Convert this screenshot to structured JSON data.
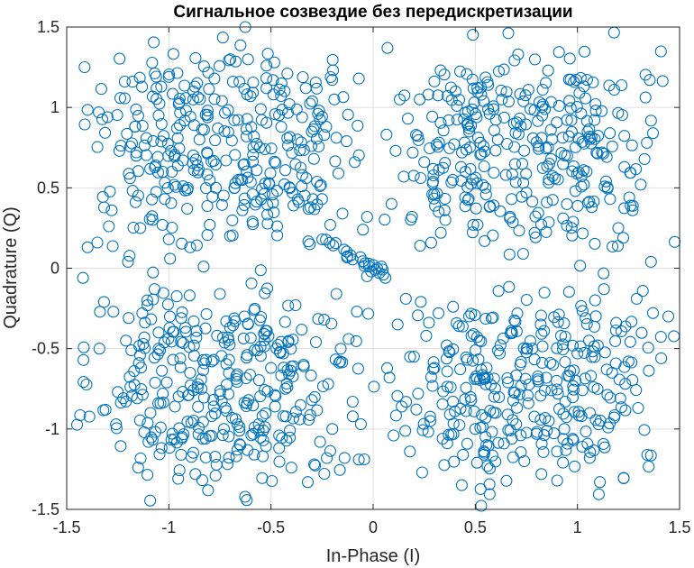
{
  "chart_data": {
    "type": "scatter",
    "title": "Сигнальное созвездие без передискретизации",
    "xlabel": "In-Phase (I)",
    "ylabel": "Quadrature (Q)",
    "xlim": [
      -1.5,
      1.5
    ],
    "ylim": [
      -1.5,
      1.5
    ],
    "xticks": [
      -1.5,
      -1,
      -0.5,
      0,
      0.5,
      1,
      1.5
    ],
    "yticks": [
      -1.5,
      -1,
      -0.5,
      0,
      0.5,
      1,
      1.5
    ],
    "xtick_labels": [
      "-1.5",
      "-1",
      "-0.5",
      "0",
      "0.5",
      "1",
      "1.5"
    ],
    "ytick_labels": [
      "-1.5",
      "-1",
      "-0.5",
      "0",
      "0.5",
      "1",
      "1.5"
    ],
    "grid": true,
    "marker": "circle-open",
    "color": "#0072BD",
    "clusters": [
      [
        -1,
        1
      ],
      [
        -0.5,
        1
      ],
      [
        0.5,
        1
      ],
      [
        1,
        1
      ],
      [
        -1,
        0.5
      ],
      [
        -0.5,
        0.5
      ],
      [
        0.5,
        0.5
      ],
      [
        1,
        0.5
      ],
      [
        -1,
        -0.5
      ],
      [
        -0.5,
        -0.5
      ],
      [
        0.5,
        -0.5
      ],
      [
        1,
        -0.5
      ],
      [
        -1,
        -1
      ],
      [
        -0.5,
        -1
      ],
      [
        0.5,
        -1
      ],
      [
        1,
        -1
      ]
    ],
    "points": [
      [
        -1.42,
        -0.06
      ],
      [
        -1.35,
        0.16
      ],
      [
        -1.34,
        -0.5
      ],
      [
        -1.31,
        -0.88
      ],
      [
        -1.3,
        0.94
      ],
      [
        -1.28,
        0.36
      ],
      [
        -1.25,
        -0.77
      ],
      [
        -1.21,
        -0.45
      ],
      [
        -1.2,
        0.04
      ],
      [
        -1.19,
        0.56
      ],
      [
        -1.17,
        -0.64
      ],
      [
        -1.16,
        0.7
      ],
      [
        -1.15,
        -1.24
      ],
      [
        -1.14,
        0.25
      ],
      [
        -1.13,
        -0.28
      ],
      [
        -1.12,
        -0.43
      ],
      [
        -1.11,
        0.81
      ],
      [
        -1.1,
        -1.08
      ],
      [
        -1.09,
        -0.9
      ],
      [
        -1.08,
        0.3
      ],
      [
        -1.07,
        -0.13
      ],
      [
        -1.06,
        1.12
      ],
      [
        -1.05,
        -0.5
      ],
      [
        -1.05,
        0.95
      ],
      [
        -1.04,
        -0.99
      ],
      [
        -1.03,
        0.6
      ],
      [
        -1.02,
        0.43
      ],
      [
        -1.01,
        -0.71
      ],
      [
        -1.0,
        1.19
      ],
      [
        -1.0,
        0.18
      ],
      [
        -0.99,
        0.73
      ],
      [
        -0.98,
        -0.57
      ],
      [
        -0.97,
        -0.86
      ],
      [
        -0.96,
        0.87
      ],
      [
        -0.95,
        1.03
      ],
      [
        -0.94,
        -1.16
      ],
      [
        -0.93,
        0.51
      ],
      [
        -0.92,
        -0.37
      ],
      [
        -0.91,
        0.37
      ],
      [
        -0.9,
        -0.49
      ],
      [
        -0.89,
        -0.96
      ],
      [
        -0.88,
        1.1
      ],
      [
        -0.87,
        -1.28
      ],
      [
        -0.86,
        0.64
      ],
      [
        -0.85,
        0.8
      ],
      [
        -0.84,
        -0.75
      ],
      [
        -0.83,
        0.01
      ],
      [
        -0.82,
        -1.06
      ],
      [
        -0.81,
        0.98
      ],
      [
        -0.8,
        0.27
      ],
      [
        -0.79,
        -0.58
      ],
      [
        -0.78,
        -0.86
      ],
      [
        -0.77,
        0.5
      ],
      [
        -0.76,
        0.87
      ],
      [
        -0.75,
        -0.16
      ],
      [
        -0.74,
        1.04
      ],
      [
        -0.73,
        -1.0
      ],
      [
        -0.72,
        0.67
      ],
      [
        -0.71,
        -0.43
      ],
      [
        -0.7,
        0.2
      ],
      [
        -0.69,
        -0.93
      ],
      [
        -0.68,
        0.92
      ],
      [
        -0.67,
        -0.67
      ],
      [
        -0.66,
        0.55
      ],
      [
        -0.65,
        -1.1
      ],
      [
        -0.64,
        0.36
      ],
      [
        -0.63,
        -0.3
      ],
      [
        -0.62,
        0.82
      ],
      [
        -0.61,
        -0.82
      ],
      [
        -0.6,
        1.07
      ],
      [
        -0.59,
        0.46
      ],
      [
        -0.58,
        -0.51
      ],
      [
        -0.57,
        0.61
      ],
      [
        -0.56,
        -0.97
      ],
      [
        -0.55,
        0.99
      ],
      [
        -0.54,
        -1.17
      ],
      [
        -0.53,
        0.74
      ],
      [
        -0.52,
        -0.39
      ],
      [
        -0.51,
        0.53
      ],
      [
        -0.5,
        -0.62
      ],
      [
        -0.49,
        1.17
      ],
      [
        -0.48,
        -0.86
      ],
      [
        -0.47,
        0.26
      ],
      [
        -0.46,
        -1.04
      ],
      [
        -0.45,
        0.88
      ],
      [
        -0.44,
        -0.53
      ],
      [
        -0.43,
        0.61
      ],
      [
        -0.42,
        -0.74
      ],
      [
        -0.41,
        1.02
      ],
      [
        -0.4,
        -1.24
      ],
      [
        -0.39,
        0.39
      ],
      [
        -0.38,
        -0.23
      ],
      [
        -0.37,
        0.8
      ],
      [
        -0.36,
        -0.94
      ],
      [
        -0.35,
        0.51
      ],
      [
        -0.34,
        -0.6
      ],
      [
        -0.33,
        1.12
      ],
      [
        -0.32,
        -1.33
      ],
      [
        -0.31,
        0.15
      ],
      [
        -0.3,
        -0.82
      ],
      [
        -0.29,
        0.68
      ],
      [
        -0.28,
        -0.46
      ],
      [
        -0.27,
        0.96
      ],
      [
        -0.26,
        -1.08
      ],
      [
        -0.25,
        0.43
      ],
      [
        -0.24,
        -0.32
      ],
      [
        -0.23,
        0.88
      ],
      [
        -0.22,
        -0.72
      ],
      [
        -0.21,
        0.27
      ],
      [
        -0.2,
        -1.0
      ],
      [
        -0.19,
        1.05
      ],
      [
        -0.18,
        -0.16
      ],
      [
        -0.17,
        0.59
      ],
      [
        -0.16,
        -0.58
      ],
      [
        -0.15,
        0.34
      ],
      [
        -0.14,
        -1.18
      ],
      [
        -0.13,
        0.79
      ],
      [
        -0.12,
        -0.44
      ],
      [
        -0.11,
        0.08
      ],
      [
        -0.1,
        -0.83
      ],
      [
        -0.09,
        0.66
      ],
      [
        -0.08,
        -0.27
      ],
      [
        -0.07,
        1.18
      ],
      [
        -0.06,
        -0.97
      ],
      [
        -0.05,
        0.24
      ],
      [
        -0.04,
        0.03
      ],
      [
        -0.03,
        -0.05
      ],
      [
        -0.02,
        0.01
      ],
      [
        -0.01,
        -0.02
      ],
      [
        0.0,
        0.02
      ],
      [
        0.01,
        -0.01
      ],
      [
        0.02,
        0.0
      ],
      [
        0.03,
        -0.03
      ],
      [
        0.04,
        0.01
      ],
      [
        0.05,
        -0.04
      ],
      [
        0.06,
        -0.06
      ],
      [
        0.07,
        1.37
      ],
      [
        0.08,
        -0.68
      ],
      [
        0.09,
        0.4
      ],
      [
        0.1,
        -1.04
      ],
      [
        0.11,
        0.73
      ],
      [
        0.12,
        -0.35
      ],
      [
        0.13,
        1.05
      ],
      [
        0.14,
        -0.86
      ],
      [
        0.15,
        0.57
      ],
      [
        0.16,
        -0.19
      ],
      [
        0.17,
        0.93
      ],
      [
        0.18,
        -1.14
      ],
      [
        0.19,
        0.32
      ],
      [
        0.2,
        -0.55
      ],
      [
        0.21,
        0.83
      ],
      [
        0.22,
        -0.78
      ],
      [
        0.23,
        0.14
      ],
      [
        0.24,
        -1.27
      ],
      [
        0.25,
        0.66
      ],
      [
        0.26,
        -0.42
      ],
      [
        0.27,
        1.08
      ],
      [
        0.28,
        -0.95
      ],
      [
        0.29,
        0.46
      ],
      [
        0.3,
        -0.62
      ],
      [
        0.31,
        0.77
      ],
      [
        0.32,
        -0.28
      ],
      [
        0.33,
        1.23
      ],
      [
        0.34,
        -1.06
      ],
      [
        0.35,
        0.36
      ],
      [
        0.36,
        -0.48
      ],
      [
        0.37,
        0.92
      ],
      [
        0.38,
        -0.74
      ],
      [
        0.39,
        0.55
      ],
      [
        0.4,
        -0.89
      ],
      [
        0.41,
        1.01
      ],
      [
        0.42,
        -0.36
      ],
      [
        0.43,
        0.63
      ],
      [
        0.44,
        -1.16
      ],
      [
        0.45,
        0.44
      ],
      [
        0.46,
        -0.57
      ],
      [
        0.47,
        0.85
      ],
      [
        0.48,
        -0.82
      ],
      [
        0.49,
        0.27
      ],
      [
        0.5,
        -1.0
      ],
      [
        0.51,
        1.12
      ],
      [
        0.52,
        -0.45
      ],
      [
        0.53,
        0.71
      ],
      [
        0.54,
        -0.68
      ],
      [
        0.55,
        0.5
      ],
      [
        0.56,
        -1.23
      ],
      [
        0.57,
        0.96
      ],
      [
        0.58,
        -0.31
      ],
      [
        0.59,
        0.39
      ],
      [
        0.6,
        -0.9
      ],
      [
        0.61,
        0.8
      ],
      [
        0.62,
        -0.53
      ],
      [
        0.63,
        1.05
      ],
      [
        0.64,
        -1.09
      ],
      [
        0.65,
        0.58
      ],
      [
        0.66,
        -0.71
      ],
      [
        0.67,
        0.32
      ],
      [
        0.68,
        -0.4
      ],
      [
        0.69,
        0.9
      ],
      [
        0.7,
        -0.97
      ],
      [
        0.71,
        1.33
      ],
      [
        0.72,
        -0.6
      ],
      [
        0.73,
        0.65
      ],
      [
        0.74,
        -1.2
      ],
      [
        0.75,
        0.47
      ],
      [
        0.76,
        -0.84
      ],
      [
        0.77,
        0.99
      ],
      [
        0.78,
        -0.5
      ],
      [
        0.79,
        0.22
      ],
      [
        0.8,
        -1.03
      ],
      [
        0.81,
        0.76
      ],
      [
        0.82,
        -0.35
      ],
      [
        0.83,
        1.11
      ],
      [
        0.84,
        -0.76
      ],
      [
        0.85,
        0.41
      ],
      [
        0.86,
        -0.95
      ],
      [
        0.87,
        0.86
      ],
      [
        0.88,
        -0.6
      ],
      [
        0.89,
        0.56
      ],
      [
        0.9,
        -1.14
      ],
      [
        0.91,
        1.01
      ],
      [
        0.92,
        -0.42
      ],
      [
        0.93,
        0.31
      ],
      [
        0.94,
        -0.83
      ],
      [
        0.95,
        0.7
      ],
      [
        0.96,
        -0.67
      ],
      [
        0.97,
        0.92
      ],
      [
        0.98,
        -1.07
      ],
      [
        0.99,
        0.48
      ],
      [
        1.0,
        -0.53
      ],
      [
        1.01,
        1.09
      ],
      [
        1.02,
        -0.92
      ],
      [
        1.03,
        0.61
      ],
      [
        1.04,
        -0.31
      ],
      [
        1.05,
        0.85
      ],
      [
        1.06,
        -1.18
      ],
      [
        1.07,
        0.38
      ],
      [
        1.08,
        -0.74
      ],
      [
        1.09,
        0.98
      ],
      [
        1.1,
        -0.48
      ],
      [
        1.11,
        -1.33
      ],
      [
        1.12,
        0.72
      ],
      [
        1.13,
        -0.13
      ],
      [
        1.14,
        0.54
      ],
      [
        1.15,
        -0.99
      ],
      [
        1.16,
        0.43
      ],
      [
        1.17,
        -0.65
      ],
      [
        1.18,
        1.11
      ],
      [
        1.19,
        -0.34
      ],
      [
        1.2,
        0.25
      ],
      [
        1.21,
        -0.81
      ],
      [
        1.23,
        0.63
      ],
      [
        1.25,
        -0.58
      ],
      [
        1.27,
        0.36
      ],
      [
        1.29,
        -0.19
      ],
      [
        1.31,
        0.52
      ],
      [
        1.34,
        0.78
      ],
      [
        1.36,
        0.04
      ],
      [
        1.37,
        0.84
      ],
      [
        1.41,
        -0.56
      ]
    ]
  }
}
